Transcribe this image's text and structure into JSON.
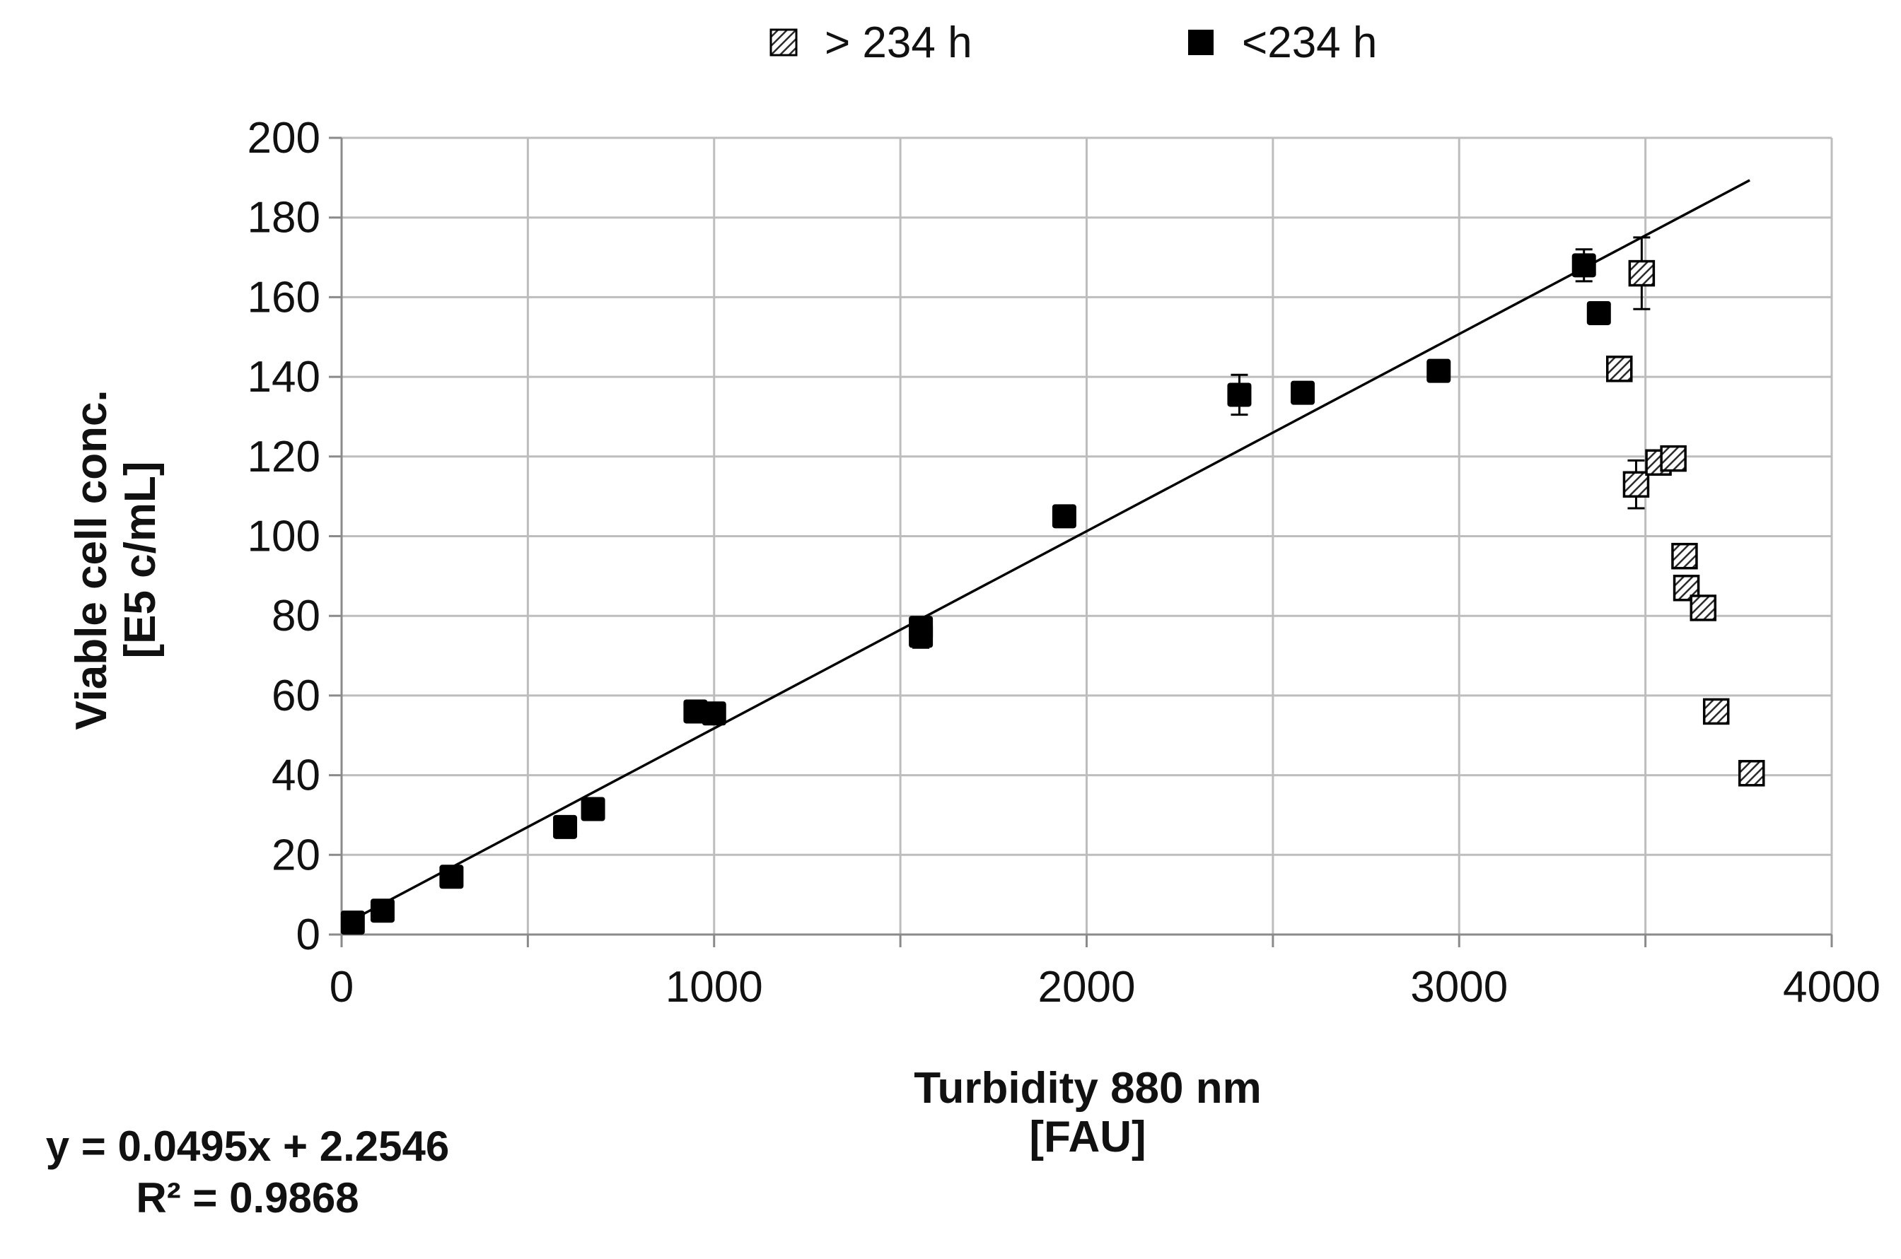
{
  "chart_data": {
    "type": "scatter",
    "xlabel": "Turbidity 880 nm",
    "xlabel_unit": "[FAU]",
    "ylabel": "Viable cell conc.",
    "ylabel_unit": "[E5 c/mL]",
    "xlim": [
      0,
      4000
    ],
    "ylim": [
      0,
      200
    ],
    "xticks": [
      0,
      1000,
      2000,
      3000,
      4000
    ],
    "x_gridlines": [
      0,
      500,
      1000,
      1500,
      2000,
      2500,
      3000,
      3500,
      4000
    ],
    "yticks": [
      0,
      20,
      40,
      60,
      80,
      100,
      120,
      140,
      160,
      180,
      200
    ],
    "grid": true,
    "legend_position": "top",
    "series": [
      {
        "name": "<234 h",
        "marker": "solid-square",
        "color": "#000000",
        "points": [
          {
            "x": 30,
            "y": 3,
            "err": 1
          },
          {
            "x": 110,
            "y": 6,
            "err": 1
          },
          {
            "x": 295,
            "y": 14.5,
            "err": 1
          },
          {
            "x": 600,
            "y": 27,
            "err": 1.5
          },
          {
            "x": 675,
            "y": 31.5,
            "err": 1.5
          },
          {
            "x": 950,
            "y": 56,
            "err": 1.5
          },
          {
            "x": 1000,
            "y": 55.5,
            "err": 1.5
          },
          {
            "x": 1555,
            "y": 77,
            "err": 2
          },
          {
            "x": 1555,
            "y": 75,
            "err": 3
          },
          {
            "x": 1940,
            "y": 105,
            "err": 2
          },
          {
            "x": 2410,
            "y": 135.5,
            "err": 5
          },
          {
            "x": 2580,
            "y": 136,
            "err": 2
          },
          {
            "x": 2945,
            "y": 141.5,
            "err": 2
          },
          {
            "x": 3335,
            "y": 168,
            "err": 4
          },
          {
            "x": 3375,
            "y": 156,
            "err": 2.5
          }
        ]
      },
      {
        "name": "> 234 h",
        "marker": "hatched-square",
        "color": "#444444",
        "points": [
          {
            "x": 3430,
            "y": 142,
            "err": 1
          },
          {
            "x": 3475,
            "y": 113,
            "err": 6
          },
          {
            "x": 3490,
            "y": 166,
            "err": 9
          },
          {
            "x": 3535,
            "y": 118.5,
            "err": 1
          },
          {
            "x": 3575,
            "y": 119.5,
            "err": 2
          },
          {
            "x": 3605,
            "y": 95,
            "err": 1
          },
          {
            "x": 3610,
            "y": 87,
            "err": 1
          },
          {
            "x": 3655,
            "y": 82,
            "err": 1
          },
          {
            "x": 3690,
            "y": 56,
            "err": 1
          },
          {
            "x": 3785,
            "y": 40.5,
            "err": 1
          }
        ]
      }
    ],
    "trendline": {
      "slope": 0.0495,
      "intercept": 2.2546,
      "x_range": [
        30,
        3780
      ],
      "equation": "y = 0.0495x + 2.2546",
      "r_squared": "R² = 0.9868"
    }
  },
  "legend": {
    "item1_label": "> 234 h",
    "item2_label": "<234 h"
  }
}
